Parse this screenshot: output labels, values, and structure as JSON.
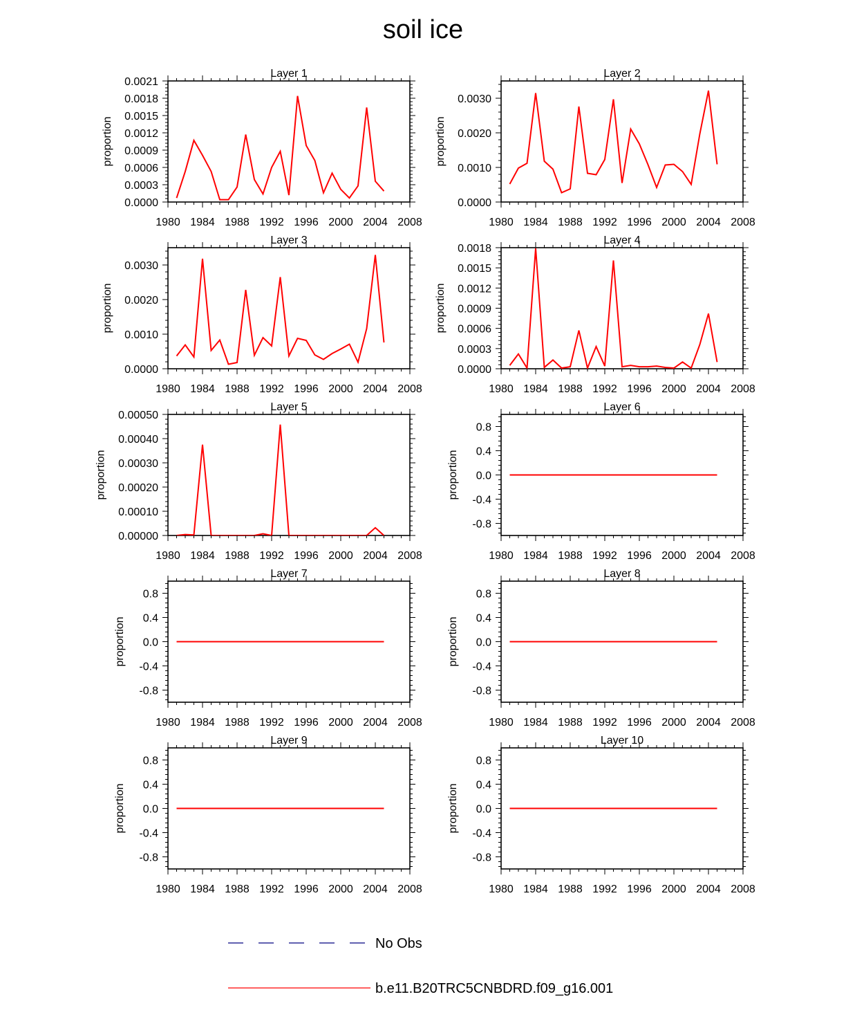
{
  "title": "soil ice",
  "colors": {
    "model": "#ff0000",
    "obs": "#000080"
  },
  "legend": {
    "obs_label": "No Obs",
    "model_label": "b.e11.B20TRC5CNBDRD.f09_g16.001"
  },
  "chart_data": [
    {
      "type": "line",
      "title": "Layer 1",
      "ylabel": "proportion",
      "xlim": [
        1980,
        2008
      ],
      "xticks": [
        1980,
        1984,
        1988,
        1992,
        1996,
        2000,
        2004,
        2008
      ],
      "ylim": [
        0,
        0.0021
      ],
      "yticks": [
        "0.0000",
        "0.0003",
        "0.0006",
        "0.0009",
        "0.0012",
        "0.0015",
        "0.0018",
        "0.0021"
      ],
      "x": [
        1981,
        1982,
        1983,
        1984,
        1985,
        1986,
        1987,
        1988,
        1989,
        1990,
        1991,
        1992,
        1993,
        1994,
        1995,
        1996,
        1997,
        1998,
        1999,
        2000,
        2001,
        2002,
        2003,
        2004,
        2005
      ],
      "series": [
        {
          "values": [
            7e-05,
            0.00053,
            0.00107,
            0.00081,
            0.00053,
            4e-05,
            4e-05,
            0.00026,
            0.00117,
            0.00039,
            0.00014,
            0.0006,
            0.00088,
            0.00012,
            0.00184,
            0.00098,
            0.00072,
            0.00016,
            0.0005,
            0.00022,
            7e-05,
            0.00028,
            0.00164,
            0.00036,
            0.00019
          ]
        }
      ]
    },
    {
      "type": "line",
      "title": "Layer 2",
      "ylabel": "proportion",
      "xlim": [
        1980,
        2008
      ],
      "xticks": [
        1980,
        1984,
        1988,
        1992,
        1996,
        2000,
        2004,
        2008
      ],
      "ylim": [
        0,
        0.0035
      ],
      "yticks": [
        "0.0000",
        "0.0010",
        "0.0020",
        "0.0030"
      ],
      "x": [
        1981,
        1982,
        1983,
        1984,
        1985,
        1986,
        1987,
        1988,
        1989,
        1990,
        1991,
        1992,
        1993,
        1994,
        1995,
        1996,
        1997,
        1998,
        1999,
        2000,
        2001,
        2002,
        2003,
        2004,
        2005
      ],
      "series": [
        {
          "values": [
            0.00052,
            0.00098,
            0.00112,
            0.00315,
            0.00118,
            0.00095,
            0.00027,
            0.00038,
            0.00276,
            0.00083,
            0.00079,
            0.00123,
            0.00297,
            0.00055,
            0.00211,
            0.00168,
            0.00108,
            0.00042,
            0.00107,
            0.00109,
            0.00088,
            0.00051,
            0.00197,
            0.00322,
            0.00109
          ]
        }
      ]
    },
    {
      "type": "line",
      "title": "Layer 3",
      "ylabel": "proportion",
      "xlim": [
        1980,
        2008
      ],
      "xticks": [
        1980,
        1984,
        1988,
        1992,
        1996,
        2000,
        2004,
        2008
      ],
      "ylim": [
        0,
        0.0035
      ],
      "yticks": [
        "0.0000",
        "0.0010",
        "0.0020",
        "0.0030"
      ],
      "x": [
        1981,
        1982,
        1983,
        1984,
        1985,
        1986,
        1987,
        1988,
        1989,
        1990,
        1991,
        1992,
        1993,
        1994,
        1995,
        1996,
        1997,
        1998,
        1999,
        2000,
        2001,
        2002,
        2003,
        2004,
        2005
      ],
      "series": [
        {
          "values": [
            0.00037,
            0.00069,
            0.00034,
            0.00318,
            0.00053,
            0.00083,
            0.00013,
            0.00018,
            0.00228,
            0.00039,
            0.0009,
            0.00066,
            0.00265,
            0.00037,
            0.00088,
            0.00082,
            0.0004,
            0.00027,
            0.00044,
            0.00057,
            0.00071,
            0.00019,
            0.00116,
            0.00329,
            0.00076
          ]
        }
      ]
    },
    {
      "type": "line",
      "title": "Layer 4",
      "ylabel": "proportion",
      "xlim": [
        1980,
        2008
      ],
      "xticks": [
        1980,
        1984,
        1988,
        1992,
        1996,
        2000,
        2004,
        2008
      ],
      "ylim": [
        0,
        0.0018
      ],
      "yticks": [
        "0.0000",
        "0.0003",
        "0.0006",
        "0.0009",
        "0.0012",
        "0.0015",
        "0.0018"
      ],
      "x": [
        1981,
        1982,
        1983,
        1984,
        1985,
        1986,
        1987,
        1988,
        1989,
        1990,
        1991,
        1992,
        1993,
        1994,
        1995,
        1996,
        1997,
        1998,
        1999,
        2000,
        2001,
        2002,
        2003,
        2004,
        2005
      ],
      "series": [
        {
          "values": [
            5e-05,
            0.00022,
            1e-05,
            0.00179,
            2e-05,
            0.00013,
            1e-05,
            3e-05,
            0.00057,
            1e-05,
            0.00033,
            4e-05,
            0.00161,
            3e-05,
            5e-05,
            3e-05,
            3e-05,
            4e-05,
            2e-05,
            1e-05,
            0.0001,
            1e-05,
            0.00036,
            0.00082,
            0.0001
          ]
        }
      ]
    },
    {
      "type": "line",
      "title": "Layer 5",
      "ylabel": "proportion",
      "xlim": [
        1980,
        2008
      ],
      "xticks": [
        1980,
        1984,
        1988,
        1992,
        1996,
        2000,
        2004,
        2008
      ],
      "ylim": [
        0,
        0.0005
      ],
      "yticks": [
        "0.00000",
        "0.00010",
        "0.00020",
        "0.00030",
        "0.00040",
        "0.00050"
      ],
      "x": [
        1981,
        1982,
        1983,
        1984,
        1985,
        1986,
        1987,
        1988,
        1989,
        1990,
        1991,
        1992,
        1993,
        1994,
        1995,
        1996,
        1997,
        1998,
        1999,
        2000,
        2001,
        2002,
        2003,
        2004,
        2005
      ],
      "series": [
        {
          "values": [
            0,
            4e-06,
            2e-06,
            0.000375,
            0,
            0,
            0,
            0,
            0,
            0,
            7e-06,
            0,
            0.000458,
            0,
            0,
            0,
            0,
            0,
            0,
            0,
            0,
            0,
            0,
            3.2e-05,
            0
          ]
        }
      ]
    },
    {
      "type": "line",
      "title": "Layer 6",
      "ylabel": "proportion",
      "xlim": [
        1980,
        2008
      ],
      "xticks": [
        1980,
        1984,
        1988,
        1992,
        1996,
        2000,
        2004,
        2008
      ],
      "ylim": [
        -1.0,
        1.0
      ],
      "yticks": [
        "-0.8",
        "-0.4",
        "0.0",
        "0.4",
        "0.8"
      ],
      "x": [
        1981,
        2005
      ],
      "series": [
        {
          "values": [
            0,
            0
          ]
        }
      ]
    },
    {
      "type": "line",
      "title": "Layer 7",
      "ylabel": "proportion",
      "xlim": [
        1980,
        2008
      ],
      "xticks": [
        1980,
        1984,
        1988,
        1992,
        1996,
        2000,
        2004,
        2008
      ],
      "ylim": [
        -1.0,
        1.0
      ],
      "yticks": [
        "-0.8",
        "-0.4",
        "0.0",
        "0.4",
        "0.8"
      ],
      "x": [
        1981,
        2005
      ],
      "series": [
        {
          "values": [
            0,
            0
          ]
        }
      ]
    },
    {
      "type": "line",
      "title": "Layer 8",
      "ylabel": "proportion",
      "xlim": [
        1980,
        2008
      ],
      "xticks": [
        1980,
        1984,
        1988,
        1992,
        1996,
        2000,
        2004,
        2008
      ],
      "ylim": [
        -1.0,
        1.0
      ],
      "yticks": [
        "-0.8",
        "-0.4",
        "0.0",
        "0.4",
        "0.8"
      ],
      "x": [
        1981,
        2005
      ],
      "series": [
        {
          "values": [
            0,
            0
          ]
        }
      ]
    },
    {
      "type": "line",
      "title": "Layer 9",
      "ylabel": "proportion",
      "xlim": [
        1980,
        2008
      ],
      "xticks": [
        1980,
        1984,
        1988,
        1992,
        1996,
        2000,
        2004,
        2008
      ],
      "ylim": [
        -1.0,
        1.0
      ],
      "yticks": [
        "-0.8",
        "-0.4",
        "0.0",
        "0.4",
        "0.8"
      ],
      "x": [
        1981,
        2005
      ],
      "series": [
        {
          "values": [
            0,
            0
          ]
        }
      ]
    },
    {
      "type": "line",
      "title": "Layer 10",
      "ylabel": "proportion",
      "xlim": [
        1980,
        2008
      ],
      "xticks": [
        1980,
        1984,
        1988,
        1992,
        1996,
        2000,
        2004,
        2008
      ],
      "ylim": [
        -1.0,
        1.0
      ],
      "yticks": [
        "-0.8",
        "-0.4",
        "0.0",
        "0.4",
        "0.8"
      ],
      "x": [
        1981,
        2005
      ],
      "series": [
        {
          "values": [
            0,
            0
          ]
        }
      ]
    }
  ]
}
